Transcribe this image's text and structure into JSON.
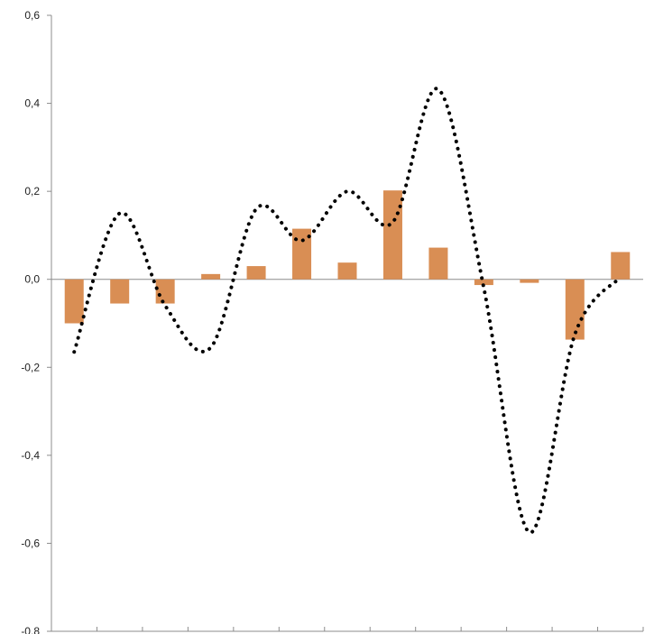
{
  "chart_data": {
    "type": "bar",
    "title": "",
    "xlabel": "",
    "ylabel": "",
    "ylim": [
      -0.8,
      0.6
    ],
    "yticks": [
      -0.8,
      -0.6,
      -0.4,
      -0.2,
      0.0,
      0.2,
      0.4,
      0.6
    ],
    "ytick_labels": [
      "-0,8",
      "-0,6",
      "-0,4",
      "-0,2",
      "0,0",
      "0,2",
      "0,4",
      "0,6"
    ],
    "categories": [
      "",
      "",
      "",
      "",
      "",
      "",
      "",
      "",
      "",
      "",
      "",
      "",
      ""
    ],
    "grid": false,
    "legend": "none",
    "series": [
      {
        "kind": "bar",
        "color": "#D98E54",
        "values": [
          -0.1,
          -0.055,
          -0.055,
          0.012,
          0.03,
          0.115,
          0.038,
          0.202,
          0.072,
          -0.013,
          -0.008,
          -0.137,
          0.062
        ]
      },
      {
        "kind": "line",
        "style": "dotted",
        "smooth": true,
        "color": "#000000",
        "values": [
          -0.165,
          0.15,
          -0.06,
          -0.155,
          0.16,
          0.088,
          0.2,
          0.13,
          0.432,
          -0.02,
          -0.575,
          -0.125,
          0.005
        ]
      }
    ]
  }
}
